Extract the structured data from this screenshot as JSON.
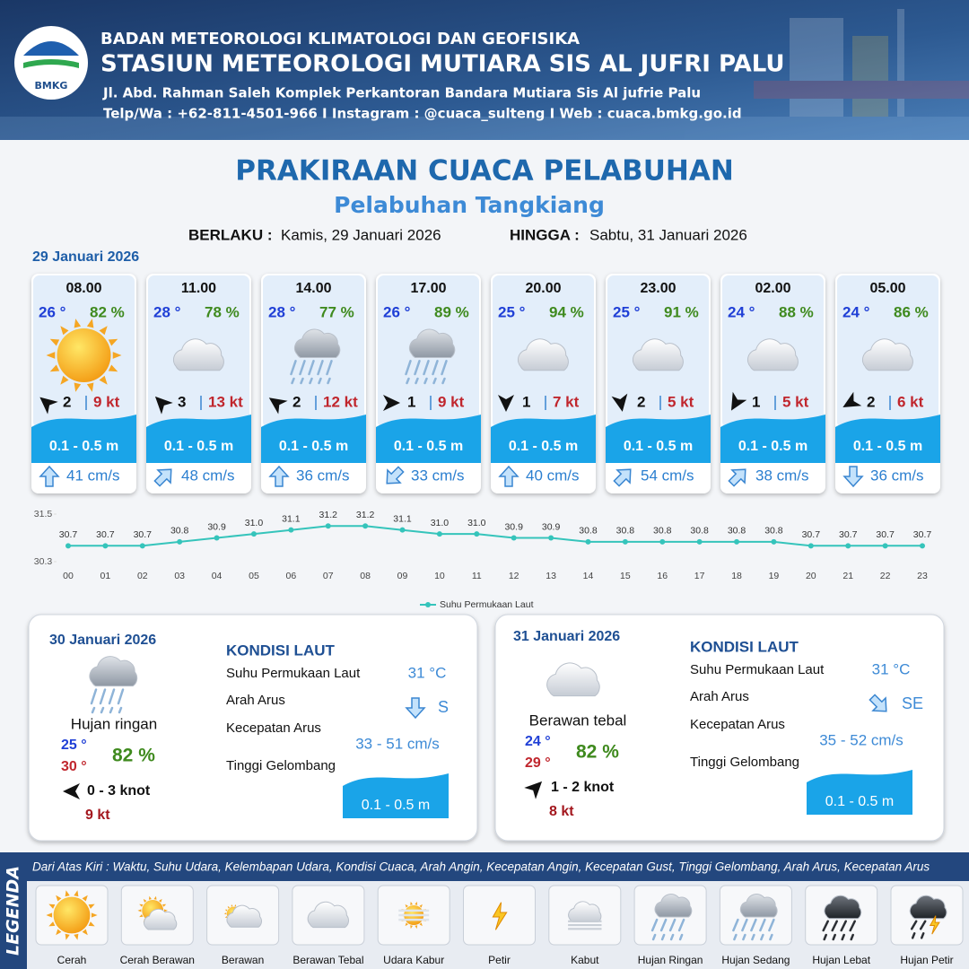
{
  "header": {
    "logo": "BMKG",
    "agency": "BADAN METEOROLOGI KLIMATOLOGI DAN GEOFISIKA",
    "station": "STASIUN METEOROLOGI MUTIARA SIS AL JUFRI PALU",
    "address": "Jl. Abd. Rahman Saleh Komplek Perkantoran Bandara Mutiara Sis Al jufrie Palu",
    "contact": "Telp/Wa : +62-811-4501-966 I Instagram : @cuaca_sulteng I Web : cuaca.bmkg.go.id"
  },
  "title": "PRAKIRAAN CUACA PELABUHAN",
  "subtitle": "Pelabuhan Tangkiang",
  "validity": {
    "from_label": "BERLAKU :",
    "from": "Kamis, 29 Januari 2026",
    "to_label": "HINGGA :",
    "to": "Sabtu, 31 Januari 2026"
  },
  "forecast": {
    "date": "29 Januari 2026",
    "slots": [
      {
        "time": "08.00",
        "temperature": "26 °",
        "humidity": "82 %",
        "wind": 2,
        "gust": "9 kt",
        "wave": "0.1 - 0.5 m",
        "current_speed": "41 cm/s"
      },
      {
        "time": "11.00",
        "temperature": "28 °",
        "humidity": "78 %",
        "wind": 3,
        "gust": "13 kt",
        "wave": "0.1 - 0.5 m",
        "current_speed": "48 cm/s"
      },
      {
        "time": "14.00",
        "temperature": "28 °",
        "humidity": "77 %",
        "wind": 2,
        "gust": "12 kt",
        "wave": "0.1 - 0.5 m",
        "current_speed": "36 cm/s"
      },
      {
        "time": "17.00",
        "temperature": "26 °",
        "humidity": "89 %",
        "wind": 1,
        "gust": "9 kt",
        "wave": "0.1 - 0.5 m",
        "current_speed": "33 cm/s"
      },
      {
        "time": "20.00",
        "temperature": "25 °",
        "humidity": "94 %",
        "wind": 1,
        "gust": "7 kt",
        "wave": "0.1 - 0.5 m",
        "current_speed": "40 cm/s"
      },
      {
        "time": "23.00",
        "temperature": "25 °",
        "humidity": "91 %",
        "wind": 2,
        "gust": "5 kt",
        "wave": "0.1 - 0.5 m",
        "current_speed": "54 cm/s"
      },
      {
        "time": "02.00",
        "temperature": "24 °",
        "humidity": "88 %",
        "wind": 1,
        "gust": "5 kt",
        "wave": "0.1 - 0.5 m",
        "current_speed": "38 cm/s"
      },
      {
        "time": "05.00",
        "temperature": "24 °",
        "humidity": "86 %",
        "wind": 2,
        "gust": "6 kt",
        "wave": "0.1 - 0.5 m",
        "current_speed": "36 cm/s"
      }
    ]
  },
  "chart_data": {
    "type": "line",
    "categories": [
      "00",
      "01",
      "02",
      "03",
      "04",
      "05",
      "06",
      "07",
      "08",
      "09",
      "10",
      "11",
      "12",
      "13",
      "14",
      "15",
      "16",
      "17",
      "18",
      "19",
      "20",
      "21",
      "22",
      "23"
    ],
    "series": [
      {
        "name": "Suhu Permukaan Laut",
        "color": "#35c4bb",
        "values": [
          30.7,
          30.7,
          30.7,
          30.8,
          30.9,
          31.0,
          31.1,
          31.2,
          31.2,
          31.1,
          31.0,
          31.0,
          30.9,
          30.9,
          30.8,
          30.8,
          30.8,
          30.8,
          30.8,
          30.8,
          30.7,
          30.7,
          30.7,
          30.7
        ],
        "value_labels": [
          "30.7",
          "30.7",
          "30.7",
          "30.8",
          "30.9",
          "31.0",
          "31.1",
          "31.2",
          "31.2",
          "31.1",
          "31.0",
          "31.0",
          "30.9",
          "30.9",
          "30.8",
          "30.8",
          "30.8",
          "30.8",
          "30.8",
          "30.8",
          "30.7",
          "30.7",
          "30.7",
          "30.7"
        ]
      }
    ],
    "ylim": [
      30.3,
      31.5
    ],
    "yticks": [
      30.3,
      31.5
    ]
  },
  "daily": [
    {
      "date": "30 Januari 2026",
      "condition": "Hujan ringan",
      "temp_min": "25 °",
      "temp_max": "30 °",
      "humidity": "82 %",
      "wind": "0 - 3 knot",
      "gust": "9 kt",
      "sea_heading": "KONDISI LAUT",
      "sea": [
        {
          "label": "Suhu Permukaan Laut",
          "value": "31 °C"
        },
        {
          "label": "Arah Arus",
          "value": "S"
        },
        {
          "label": "Kecepatan Arus",
          "value": "33 - 51 cm/s"
        },
        {
          "label": "Tinggi Gelombang",
          "value": "0.1 - 0.5 m"
        }
      ]
    },
    {
      "date": "31 Januari 2026",
      "condition": "Berawan tebal",
      "temp_min": "24 °",
      "temp_max": "29 °",
      "humidity": "82 %",
      "wind": "1 - 2 knot",
      "gust": "8 kt",
      "sea_heading": "KONDISI LAUT",
      "sea": [
        {
          "label": "Suhu Permukaan Laut",
          "value": "31 °C"
        },
        {
          "label": "Arah Arus",
          "value": "SE"
        },
        {
          "label": "Kecepatan Arus",
          "value": "35 - 52 cm/s"
        },
        {
          "label": "Tinggi Gelombang",
          "value": "0.1 - 0.5 m"
        }
      ]
    }
  ],
  "legend": {
    "title": "LEGENDA",
    "description": "Dari Atas Kiri : Waktu, Suhu Udara, Kelembapan Udara, Kondisi Cuaca, Arah Angin, Kecepatan Angin, Kecepatan Gust, Tinggi Gelombang, Arah Arus, Kecepatan Arus",
    "items": [
      "Cerah",
      "Cerah Berawan",
      "Berawan",
      "Berawan Tebal",
      "Udara Kabur",
      "Petir",
      "Kabut",
      "Hujan Ringan",
      "Hujan Sedang",
      "Hujan Lebat",
      "Hujan Petir"
    ]
  }
}
